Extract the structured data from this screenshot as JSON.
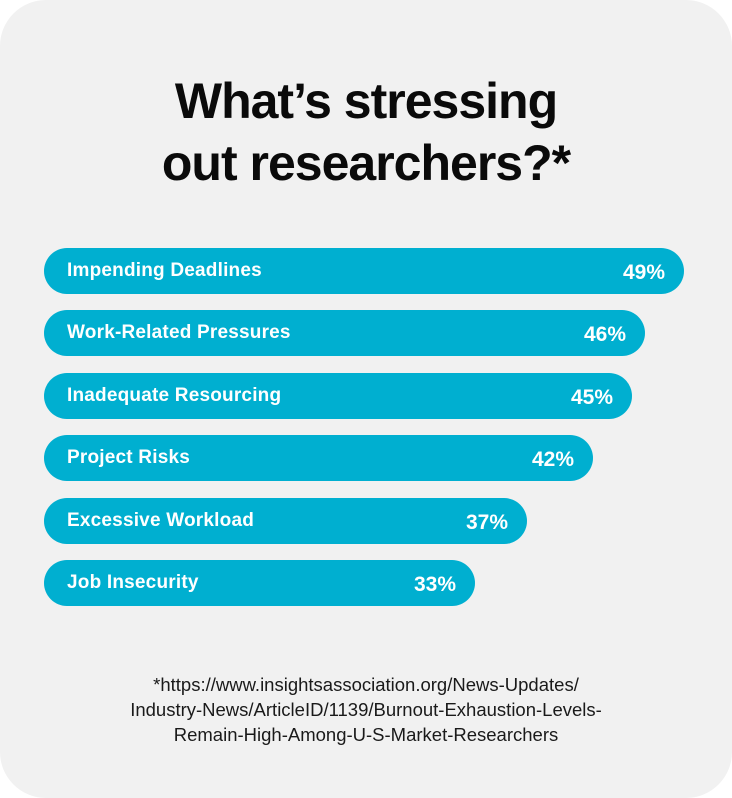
{
  "title": {
    "line1": "What’s stressing",
    "line2": "out researchers?*"
  },
  "colors": {
    "bar": "#00afd0",
    "background": "#f1f1f1",
    "text": "#0a0a0a"
  },
  "chart_data": {
    "type": "bar",
    "orientation": "horizontal",
    "title": "What’s stressing out researchers?*",
    "categories": [
      "Impending Deadlines",
      "Work-Related Pressures",
      "Inadequate Resourcing",
      "Project Risks",
      "Excessive Workload",
      "Job Insecurity"
    ],
    "values": [
      49,
      46,
      45,
      42,
      37,
      33
    ],
    "value_labels": [
      "49%",
      "46%",
      "45%",
      "42%",
      "37%",
      "33%"
    ],
    "unit": "%",
    "grid": false,
    "legend": "none"
  },
  "footnote": {
    "line1": "*https://www.insightsassociation.org/News-Updates/",
    "line2": "Industry-News/ArticleID/1139/Burnout-Exhaustion-Levels-",
    "line3": "Remain-High-Among-U-S-Market-Researchers"
  }
}
